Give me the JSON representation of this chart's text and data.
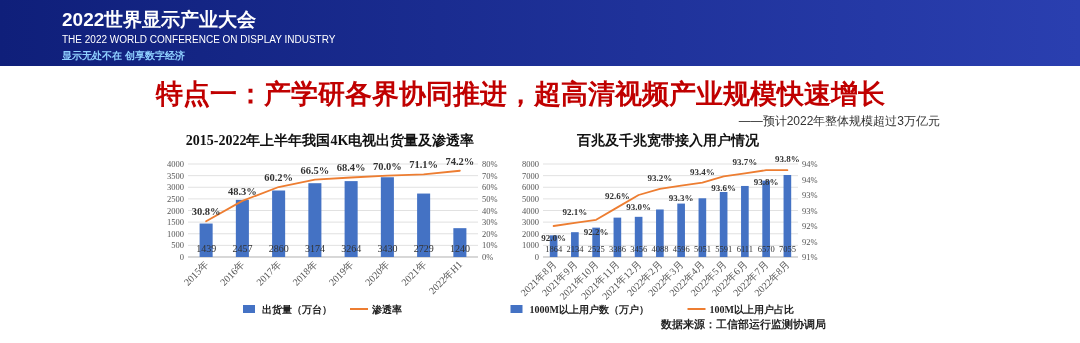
{
  "chart_data": [
    {
      "type": "other",
      "title": "特点一：产学研各界协同推进，超高清视频产业规模快速增长",
      "subtitle": "——预计2022年整体规模超过3万亿元",
      "annotations": [
        "2022世界显示产业大会",
        "THE 2022 WORLD CONFERENCE ON DISPLAY INDUSTRY",
        "显示无处不在 创享数字经济"
      ]
    },
    {
      "type": "bar",
      "title": "2015-2022年上半年我国4K电视出货量及渗透率",
      "categories": [
        "2015年",
        "2016年",
        "2017年",
        "2018年",
        "2019年",
        "2020年",
        "2021年",
        "2022年H1"
      ],
      "series": [
        {
          "name": "出货量（万台）",
          "type": "bar",
          "color": "#4472c4",
          "values": [
            1439,
            2457,
            2860,
            3174,
            3264,
            3430,
            2729,
            1240
          ],
          "value_labels": [
            "1439",
            "2457",
            "2860",
            "3174",
            "3264",
            "3430",
            "2729",
            "1240"
          ]
        },
        {
          "name": "渗透率",
          "type": "line",
          "axis": "y2",
          "color": "#ed7d31",
          "values": [
            30.8,
            48.3,
            60.2,
            66.5,
            68.4,
            70.0,
            71.1,
            74.2
          ],
          "value_labels": [
            "30.8%",
            "48.3%",
            "60.2%",
            "66.5%",
            "68.4%",
            "70.0%",
            "71.1%",
            "74.2%"
          ]
        }
      ],
      "ylim": [
        0,
        4000
      ],
      "yticks": [
        0,
        500,
        1000,
        1500,
        2000,
        2500,
        3000,
        3500,
        4000
      ],
      "y2lim": [
        0,
        80
      ],
      "y2ticks": [
        {
          "value": 0,
          "label": "0%"
        },
        {
          "value": 10,
          "label": "10%"
        },
        {
          "value": 20,
          "label": "20%"
        },
        {
          "value": 30,
          "label": "30%"
        },
        {
          "value": 40,
          "label": "40%"
        },
        {
          "value": 50,
          "label": "50%"
        },
        {
          "value": 60,
          "label": "60%"
        },
        {
          "value": 70,
          "label": "70%"
        },
        {
          "value": 80,
          "label": "80%"
        }
      ],
      "grid": "y",
      "legend": "bottom"
    },
    {
      "type": "bar",
      "title": "百兆及千兆宽带接入用户情况",
      "categories": [
        "2021年8月",
        "2021年9月",
        "2021年10月",
        "2021年11月",
        "2021年12月",
        "2022年2月",
        "2022年3月",
        "2022年4月",
        "2022年5月",
        "2022年6月",
        "2022年7月",
        "2022年8月"
      ],
      "series": [
        {
          "name": "1000M以上用户数（万户）",
          "type": "bar",
          "color": "#4472c4",
          "values": [
            1864,
            2134,
            2525,
            3386,
            3456,
            4088,
            4596,
            5051,
            5591,
            6111,
            6570,
            7055
          ],
          "value_labels": [
            "1864",
            "2134",
            "2525",
            "3386",
            "3456",
            "4088",
            "4596",
            "5051",
            "5591",
            "6111",
            "6570",
            "7055"
          ]
        },
        {
          "name": "100M以上用户占比",
          "type": "line",
          "axis": "y2",
          "color": "#ed7d31",
          "values": [
            92.0,
            92.1,
            92.2,
            92.6,
            93.0,
            93.2,
            93.3,
            93.4,
            93.6,
            93.7,
            93.8,
            93.8
          ],
          "value_labels": [
            "92.0%",
            "92.1%",
            "92.2%",
            "92.6%",
            "93.0%",
            "93.2%",
            "93.3%",
            "93.4%",
            "93.6%",
            "93.7%",
            "93.8%",
            "93.8%"
          ]
        }
      ],
      "ylim": [
        0,
        8000
      ],
      "yticks": [
        0,
        1000,
        2000,
        3000,
        4000,
        5000,
        6000,
        7000,
        8000
      ],
      "y2lim": [
        91,
        94
      ],
      "y2ticks": [
        {
          "value": 91,
          "label": "91%"
        },
        {
          "value": 91.5,
          "label": "92%"
        },
        {
          "value": 92,
          "label": "92%"
        },
        {
          "value": 92.5,
          "label": "93%"
        },
        {
          "value": 93,
          "label": "93%"
        },
        {
          "value": 93.5,
          "label": "94%"
        },
        {
          "value": 94,
          "label": "94%"
        }
      ],
      "grid": "y",
      "legend": "bottom",
      "annotations": [
        "数据来源：工信部运行监测协调局"
      ]
    }
  ]
}
